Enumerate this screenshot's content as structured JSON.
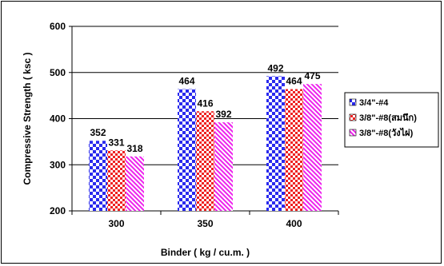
{
  "chart_data": {
    "type": "bar",
    "title": "",
    "xlabel": "Binder ( kg / cu.m. )",
    "ylabel": "Compressive Strength ( ksc )",
    "ylim": [
      200,
      600
    ],
    "yticks": [
      "200",
      "300",
      "400",
      "500",
      "600"
    ],
    "categories": [
      "300",
      "350",
      "400"
    ],
    "grid": "horizontal",
    "legend_position": "right",
    "series": [
      {
        "name": "3/4\"-#4",
        "values": [
          352,
          464,
          492
        ],
        "pattern": "checker",
        "color": "#2a2aee"
      },
      {
        "name": "3/8\"-#8(สมนึก)",
        "values": [
          331,
          416,
          464
        ],
        "pattern": "checker",
        "color": "#ee2222"
      },
      {
        "name": "3/8\"-#8(วังไผ่)",
        "values": [
          318,
          392,
          475
        ],
        "pattern": "diagonal",
        "color": "#ee22ee"
      }
    ]
  }
}
